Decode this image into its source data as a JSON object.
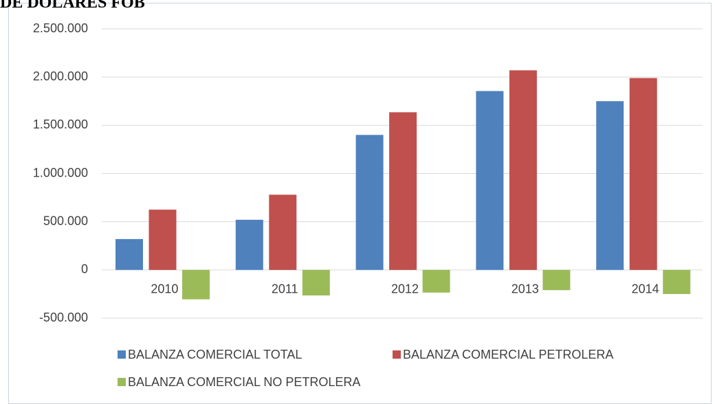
{
  "chart_data": {
    "type": "bar",
    "title": "DE DOLARES FOB",
    "categories": [
      "2010",
      "2011",
      "2012",
      "2013",
      "2014"
    ],
    "series": [
      {
        "name": "BALANZA COMERCIAL TOTAL",
        "color": "#4f81bd",
        "values": [
          320000,
          520000,
          1400000,
          1855000,
          1750000
        ]
      },
      {
        "name": "BALANZA COMERCIAL PETROLERA",
        "color": "#c0504d",
        "values": [
          625000,
          780000,
          1635000,
          2070000,
          1990000
        ]
      },
      {
        "name": "BALANZA COMERCIAL NO PETROLERA",
        "color": "#9bbb59",
        "values": [
          -305000,
          -265000,
          -235000,
          -210000,
          -250000
        ]
      }
    ],
    "ylim": [
      -500000,
      2500000
    ],
    "yticks": [
      {
        "value": -500000,
        "label": "-500.000"
      },
      0,
      {
        "value": 500000,
        "label": "500.000"
      },
      {
        "value": 1000000,
        "label": "1.000.000"
      },
      {
        "value": 1500000,
        "label": "1.500.000"
      },
      {
        "value": 2000000,
        "label": "2.000.000"
      },
      {
        "value": 2500000,
        "label": "2.500.000"
      }
    ],
    "grid": true
  }
}
